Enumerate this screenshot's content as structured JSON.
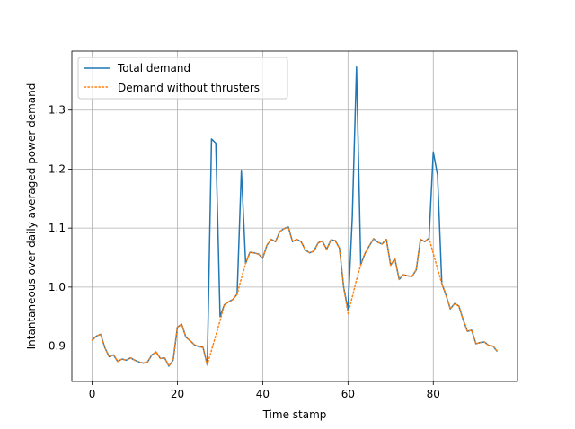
{
  "chart_data": {
    "type": "line",
    "title": "",
    "xlabel": "Time stamp",
    "ylabel": "Intantaneous over daily averaged power demand",
    "xlim": [
      -4.75,
      99.75
    ],
    "ylim": [
      0.84,
      1.4
    ],
    "xticks": [
      0,
      20,
      40,
      60,
      80
    ],
    "yticks": [
      0.9,
      1.0,
      1.1,
      1.2,
      1.3
    ],
    "xtick_labels": [
      "0",
      "20",
      "40",
      "60",
      "80"
    ],
    "ytick_labels": [
      "0.9",
      "1.0",
      "1.1",
      "1.2",
      "1.3"
    ],
    "grid": true,
    "legend_position": "upper-left",
    "x": [
      0,
      1,
      2,
      3,
      4,
      5,
      6,
      7,
      8,
      9,
      10,
      11,
      12,
      13,
      14,
      15,
      16,
      17,
      18,
      19,
      20,
      21,
      22,
      23,
      24,
      25,
      26,
      27,
      28,
      29,
      30,
      31,
      32,
      33,
      34,
      35,
      36,
      37,
      38,
      39,
      40,
      41,
      42,
      43,
      44,
      45,
      46,
      47,
      48,
      49,
      50,
      51,
      52,
      53,
      54,
      55,
      56,
      57,
      58,
      59,
      60,
      61,
      62,
      63,
      64,
      65,
      66,
      67,
      68,
      69,
      70,
      71,
      72,
      73,
      74,
      75,
      76,
      77,
      78,
      79,
      80,
      81,
      82,
      83,
      84,
      85,
      86,
      87,
      88,
      89,
      90,
      91,
      92,
      93,
      94,
      95
    ],
    "series": [
      {
        "name": "Total demand",
        "color": "#1f77b4",
        "style": "solid",
        "values": [
          0.91,
          0.917,
          0.92,
          0.897,
          0.882,
          0.885,
          0.874,
          0.878,
          0.876,
          0.88,
          0.876,
          0.873,
          0.871,
          0.873,
          0.885,
          0.89,
          0.879,
          0.88,
          0.866,
          0.876,
          0.932,
          0.937,
          0.915,
          0.909,
          0.902,
          0.899,
          0.898,
          0.868,
          1.251,
          1.244,
          0.95,
          0.97,
          0.975,
          0.979,
          0.988,
          1.198,
          1.04,
          1.059,
          1.058,
          1.056,
          1.049,
          1.071,
          1.081,
          1.077,
          1.094,
          1.099,
          1.102,
          1.077,
          1.081,
          1.077,
          1.063,
          1.058,
          1.061,
          1.075,
          1.078,
          1.064,
          1.08,
          1.079,
          1.066,
          0.999,
          0.962,
          1.117,
          1.373,
          1.038,
          1.057,
          1.07,
          1.082,
          1.076,
          1.073,
          1.081,
          1.037,
          1.048,
          1.013,
          1.021,
          1.019,
          1.018,
          1.029,
          1.081,
          1.077,
          1.083,
          1.229,
          1.19,
          1.006,
          0.986,
          0.963,
          0.972,
          0.968,
          0.945,
          0.925,
          0.927,
          0.904,
          0.906,
          0.907,
          0.901,
          0.9,
          0.891
        ]
      },
      {
        "name": "Demand without thrusters",
        "color": "#ff7f0e",
        "style": "dotted",
        "values": [
          0.91,
          0.917,
          0.92,
          0.897,
          0.882,
          0.885,
          0.874,
          0.878,
          0.876,
          0.88,
          0.876,
          0.873,
          0.871,
          0.873,
          0.885,
          0.89,
          0.879,
          0.88,
          0.866,
          0.876,
          0.932,
          0.937,
          0.915,
          0.909,
          0.902,
          0.899,
          0.898,
          0.868,
          0.893,
          0.918,
          0.943,
          0.97,
          0.975,
          0.979,
          0.988,
          1.015,
          1.04,
          1.059,
          1.058,
          1.056,
          1.049,
          1.071,
          1.081,
          1.077,
          1.094,
          1.099,
          1.102,
          1.077,
          1.081,
          1.077,
          1.063,
          1.058,
          1.061,
          1.075,
          1.078,
          1.064,
          1.08,
          1.079,
          1.066,
          0.999,
          0.955,
          0.983,
          1.012,
          1.038,
          1.057,
          1.07,
          1.082,
          1.076,
          1.073,
          1.081,
          1.037,
          1.048,
          1.013,
          1.021,
          1.019,
          1.018,
          1.029,
          1.081,
          1.077,
          1.083,
          1.057,
          1.031,
          1.006,
          0.986,
          0.963,
          0.972,
          0.968,
          0.945,
          0.925,
          0.927,
          0.904,
          0.906,
          0.907,
          0.901,
          0.9,
          0.891
        ]
      }
    ]
  }
}
